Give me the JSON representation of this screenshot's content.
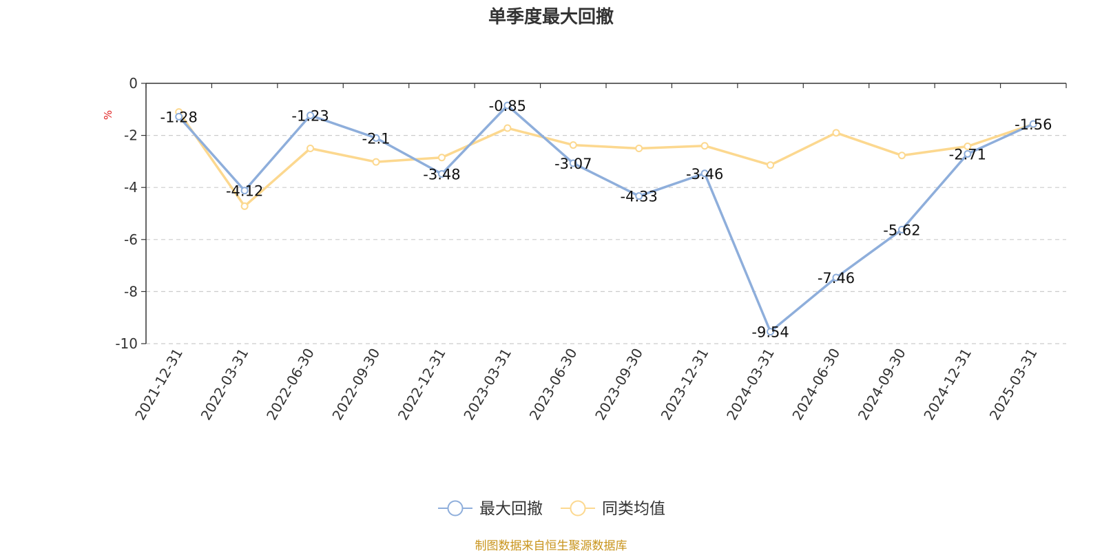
{
  "title": "单季度最大回撤",
  "unit_label": "%",
  "credit": "制图数据来自恒生聚源数据库",
  "chart_data": {
    "type": "line",
    "title": "单季度最大回撤",
    "ylabel": "%",
    "ylim": [
      -10,
      0
    ],
    "yticks": [
      0,
      -2,
      -4,
      -6,
      -8,
      -10
    ],
    "grid": true,
    "legend_position": "bottom-center",
    "categories": [
      "2021-12-31",
      "2022-03-31",
      "2022-06-30",
      "2022-09-30",
      "2022-12-31",
      "2023-03-31",
      "2023-06-30",
      "2023-09-30",
      "2023-12-31",
      "2024-03-31",
      "2024-06-30",
      "2024-09-30",
      "2024-12-31",
      "2025-03-31"
    ],
    "series": [
      {
        "name": "最大回撤",
        "color": "#8eaedb",
        "show_labels": true,
        "values": [
          -1.28,
          -4.12,
          -1.23,
          -2.1,
          -3.48,
          -0.85,
          -3.07,
          -4.33,
          -3.46,
          -9.54,
          -7.46,
          -5.62,
          -2.71,
          -1.56
        ],
        "labels": [
          "-1.28",
          "-4.12",
          "-1.23",
          "-2.1",
          "-3.48",
          "-0.85",
          "-3.07",
          "-4.33",
          "-3.46",
          "-9.54",
          "-7.46",
          "-5.62",
          "-2.71",
          "-1.56"
        ]
      },
      {
        "name": "同类均值",
        "color": "#fcd88f",
        "show_labels": false,
        "values": [
          -1.1,
          -4.72,
          -2.5,
          -3.02,
          -2.85,
          -1.72,
          -2.37,
          -2.5,
          -2.4,
          -3.14,
          -1.9,
          -2.77,
          -2.42,
          -1.57
        ]
      }
    ]
  }
}
